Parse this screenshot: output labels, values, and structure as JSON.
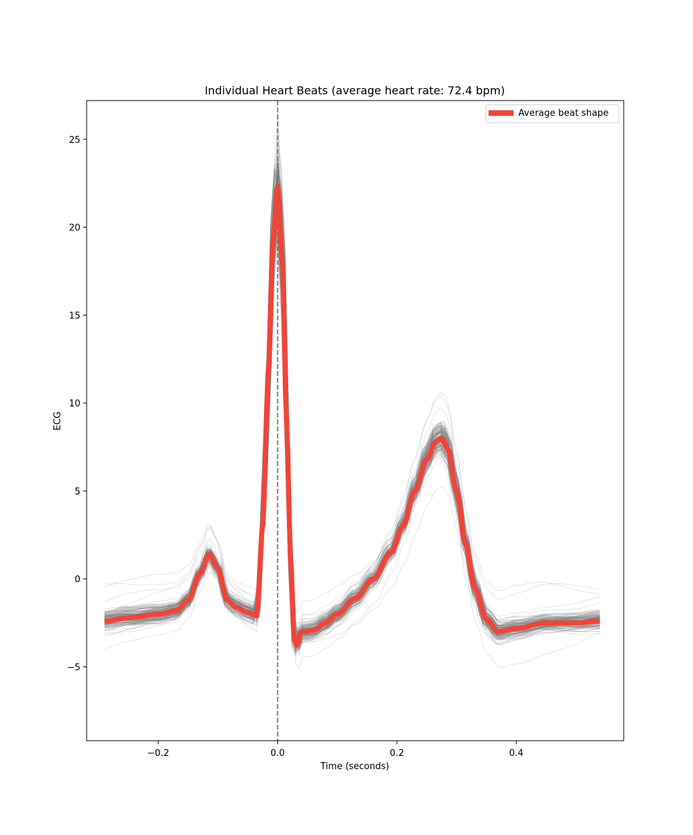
{
  "chart_data": {
    "type": "line",
    "title": "Individual Heart Beats (average heart rate: 72.4 bpm)",
    "xlabel": "Time (seconds)",
    "ylabel": "ECG",
    "xlim": [
      -0.32,
      0.58
    ],
    "ylim": [
      -9.2,
      27.2
    ],
    "x_ticks": [
      -0.2,
      0.0,
      0.2,
      0.4
    ],
    "x_tick_labels": [
      "−0.2",
      "0.0",
      "0.2",
      "0.4"
    ],
    "y_ticks": [
      -5,
      0,
      5,
      10,
      15,
      20,
      25
    ],
    "y_tick_labels": [
      "−5",
      "0",
      "5",
      "10",
      "15",
      "20",
      "25"
    ],
    "grid": false,
    "legend": {
      "position": "top-right",
      "entries": [
        "Average beat shape"
      ]
    },
    "reference_line": {
      "x": 0.0,
      "style": "dashed",
      "color": "#777777"
    },
    "individual_beats_color": "#808080",
    "average_beat": {
      "name": "Average beat shape",
      "color": "#f44336",
      "x": [
        -0.29,
        -0.25,
        -0.2,
        -0.17,
        -0.15,
        -0.13,
        -0.115,
        -0.1,
        -0.085,
        -0.07,
        -0.05,
        -0.035,
        -0.025,
        -0.015,
        -0.008,
        0.0,
        0.008,
        0.015,
        0.022,
        0.028,
        0.032,
        0.04,
        0.05,
        0.06,
        0.08,
        0.1,
        0.13,
        0.16,
        0.19,
        0.21,
        0.23,
        0.25,
        0.265,
        0.275,
        0.285,
        0.3,
        0.315,
        0.33,
        0.35,
        0.37,
        0.4,
        0.45,
        0.5,
        0.54
      ],
      "y": [
        -2.4,
        -2.2,
        -2.0,
        -1.8,
        -1.2,
        0.3,
        1.4,
        0.6,
        -1.2,
        -1.6,
        -1.9,
        -2.1,
        3.0,
        12.0,
        19.0,
        22.4,
        18.0,
        9.0,
        1.0,
        -3.5,
        -3.8,
        -3.0,
        -3.0,
        -2.9,
        -2.5,
        -2.0,
        -1.1,
        0.0,
        1.5,
        3.0,
        5.0,
        6.8,
        7.8,
        8.0,
        7.4,
        5.0,
        2.0,
        -0.5,
        -2.3,
        -3.0,
        -2.8,
        -2.5,
        -2.5,
        -2.4
      ]
    }
  }
}
